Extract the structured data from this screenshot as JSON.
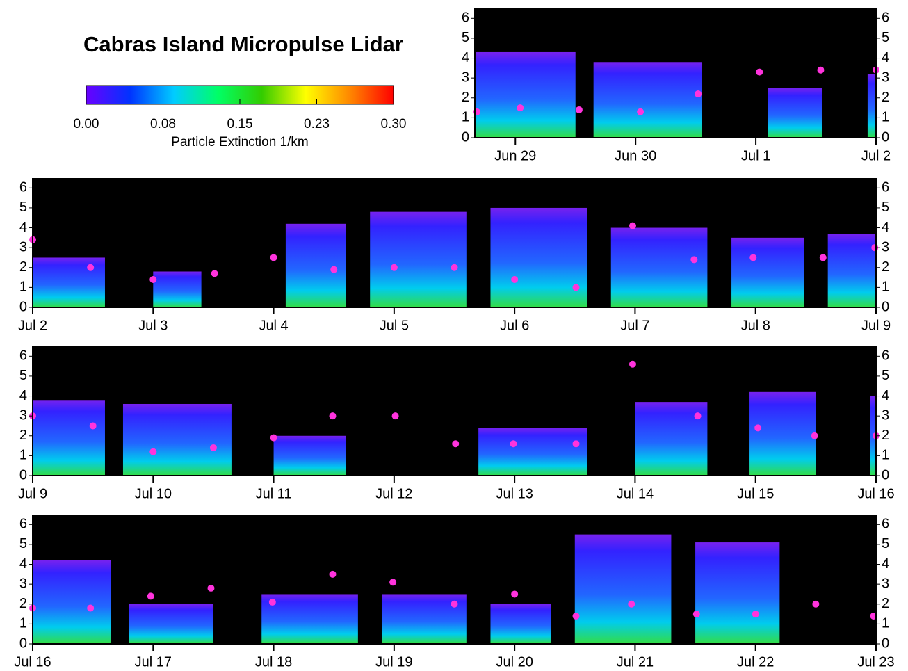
{
  "title": "Cabras Island Micropulse Lidar",
  "colorbar": {
    "label": "Particle Extinction   1/km",
    "lim": [
      0,
      0.3
    ],
    "ticks": [
      {
        "value": 0,
        "label": "0.00"
      },
      {
        "value": 0.075,
        "label": "0.08"
      },
      {
        "value": 0.15,
        "label": "0.15"
      },
      {
        "value": 0.225,
        "label": "0.23"
      },
      {
        "value": 0.3,
        "label": "0.30"
      }
    ],
    "colors": [
      "#6a00ff",
      "#0033ff",
      "#00ccff",
      "#00ff66",
      "#33cc00",
      "#ffff00",
      "#ff8800",
      "#ff0000"
    ]
  },
  "chart_data": [
    {
      "type": "lidar",
      "xlim": [
        -0.337,
        3
      ],
      "ylim": [
        0,
        6.5
      ],
      "yticks": [
        0,
        1,
        2,
        3,
        4,
        5,
        6
      ],
      "xticks": [
        {
          "value": 0,
          "label": "Jun 29"
        },
        {
          "value": 1,
          "label": "Jun 30"
        },
        {
          "value": 2,
          "label": "Jul 1"
        },
        {
          "value": 3,
          "label": "Jul 2"
        }
      ],
      "segments": [
        {
          "x": [
            -0.33,
            0.5
          ],
          "top": 4.3
        },
        {
          "x": [
            0.65,
            1.55
          ],
          "top": 3.8
        },
        {
          "x": [
            2.1,
            2.55
          ],
          "top": 2.5
        },
        {
          "x": [
            2.93,
            3.0
          ],
          "top": 3.2
        }
      ],
      "points": {
        "color": "#ff33dd",
        "x": [
          -0.32,
          0.04,
          0.53,
          1.04,
          1.52,
          2.03,
          2.54,
          3.0
        ],
        "y": [
          1.3,
          1.5,
          1.4,
          1.3,
          2.2,
          3.3,
          3.4,
          3.4
        ]
      }
    },
    {
      "type": "lidar",
      "xlim": [
        3,
        10
      ],
      "ylim": [
        0,
        6.5
      ],
      "yticks": [
        0,
        1,
        2,
        3,
        4,
        5,
        6
      ],
      "xticks": [
        {
          "value": 3,
          "label": "Jul 2"
        },
        {
          "value": 4,
          "label": "Jul 3"
        },
        {
          "value": 5,
          "label": "Jul 4"
        },
        {
          "value": 6,
          "label": "Jul 5"
        },
        {
          "value": 7,
          "label": "Jul 6"
        },
        {
          "value": 8,
          "label": "Jul 7"
        },
        {
          "value": 9,
          "label": "Jul 8"
        },
        {
          "value": 10,
          "label": "Jul 9"
        }
      ],
      "segments": [
        {
          "x": [
            3,
            3.6
          ],
          "top": 2.5
        },
        {
          "x": [
            4.0,
            4.4
          ],
          "top": 1.8
        },
        {
          "x": [
            5.1,
            5.6
          ],
          "top": 4.2
        },
        {
          "x": [
            5.8,
            6.6
          ],
          "top": 4.8
        },
        {
          "x": [
            6.8,
            7.6
          ],
          "top": 5.0
        },
        {
          "x": [
            7.8,
            8.6
          ],
          "top": 4.0
        },
        {
          "x": [
            8.8,
            9.4
          ],
          "top": 3.5
        },
        {
          "x": [
            9.6,
            10
          ],
          "top": 3.7
        }
      ],
      "points": {
        "color": "#ff33dd",
        "x": [
          3.0,
          3.48,
          4.0,
          4.51,
          5.0,
          5.5,
          6.0,
          6.5,
          7.0,
          7.51,
          7.98,
          8.49,
          8.98,
          9.56,
          9.99
        ],
        "y": [
          3.4,
          2.0,
          1.4,
          1.7,
          2.5,
          1.9,
          2.0,
          2.0,
          1.4,
          1.0,
          4.1,
          2.4,
          2.5,
          2.5,
          3.0
        ]
      }
    },
    {
      "type": "lidar",
      "xlim": [
        10,
        17
      ],
      "ylim": [
        0,
        6.5
      ],
      "yticks": [
        0,
        1,
        2,
        3,
        4,
        5,
        6
      ],
      "xticks": [
        {
          "value": 10,
          "label": "Jul 9"
        },
        {
          "value": 11,
          "label": "Jul 10"
        },
        {
          "value": 12,
          "label": "Jul 11"
        },
        {
          "value": 13,
          "label": "Jul 12"
        },
        {
          "value": 14,
          "label": "Jul 13"
        },
        {
          "value": 15,
          "label": "Jul 14"
        },
        {
          "value": 16,
          "label": "Jul 15"
        },
        {
          "value": 17,
          "label": "Jul 16"
        }
      ],
      "segments": [
        {
          "x": [
            10,
            10.6
          ],
          "top": 3.8
        },
        {
          "x": [
            10.75,
            11.65
          ],
          "top": 3.6
        },
        {
          "x": [
            12.0,
            12.6
          ],
          "top": 2.0
        },
        {
          "x": [
            13.7,
            14.6
          ],
          "top": 2.4
        },
        {
          "x": [
            15.0,
            15.6
          ],
          "top": 3.7
        },
        {
          "x": [
            15.95,
            16.5
          ],
          "top": 4.2
        },
        {
          "x": [
            16.95,
            17
          ],
          "top": 4.0
        }
      ],
      "points": {
        "color": "#ff33dd",
        "x": [
          10.0,
          10.5,
          11.0,
          11.5,
          12.0,
          12.49,
          13.01,
          13.51,
          13.99,
          14.51,
          14.98,
          15.52,
          16.02,
          16.49,
          17.0
        ],
        "y": [
          3.0,
          2.5,
          1.2,
          1.4,
          1.9,
          3.0,
          3.0,
          1.6,
          1.6,
          1.6,
          5.6,
          3.0,
          2.4,
          2.0,
          2.0
        ]
      }
    },
    {
      "type": "lidar",
      "xlim": [
        17,
        24
      ],
      "ylim": [
        0,
        6.5
      ],
      "yticks": [
        0,
        1,
        2,
        3,
        4,
        5,
        6
      ],
      "xticks": [
        {
          "value": 17,
          "label": "Jul 16"
        },
        {
          "value": 18,
          "label": "Jul 17"
        },
        {
          "value": 19,
          "label": "Jul 18"
        },
        {
          "value": 20,
          "label": "Jul 19"
        },
        {
          "value": 21,
          "label": "Jul 20"
        },
        {
          "value": 22,
          "label": "Jul 21"
        },
        {
          "value": 23,
          "label": "Jul 22"
        },
        {
          "value": 24,
          "label": "Jul 23"
        }
      ],
      "segments": [
        {
          "x": [
            17,
            17.65
          ],
          "top": 4.2
        },
        {
          "x": [
            17.8,
            18.5
          ],
          "top": 2.0
        },
        {
          "x": [
            18.9,
            19.7
          ],
          "top": 2.5
        },
        {
          "x": [
            19.9,
            20.6
          ],
          "top": 2.5
        },
        {
          "x": [
            20.8,
            21.3
          ],
          "top": 2.0
        },
        {
          "x": [
            21.5,
            22.3
          ],
          "top": 5.5
        },
        {
          "x": [
            22.5,
            23.2
          ],
          "top": 5.1
        }
      ],
      "points": {
        "color": "#ff33dd",
        "x": [
          17.0,
          17.48,
          17.98,
          18.48,
          18.99,
          19.49,
          19.99,
          20.5,
          21.0,
          21.51,
          21.97,
          22.51,
          23.0,
          23.5,
          23.98
        ],
        "y": [
          1.8,
          1.8,
          2.4,
          2.8,
          2.1,
          3.5,
          3.1,
          2.0,
          2.5,
          1.4,
          2.0,
          1.5,
          1.5,
          2.0,
          1.4
        ]
      }
    }
  ]
}
